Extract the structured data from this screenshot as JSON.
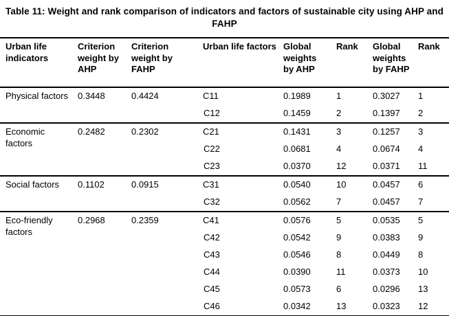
{
  "title": "Table 11: Weight and rank comparison of indicators and factors of sustainable city using AHP and FAHP",
  "columns": [
    "Urban life indicators",
    "Criterion weight by AHP",
    "Criterion weight by FAHP",
    "Urban life factors",
    "Global weights by AHP",
    "Rank",
    "Global weights by FAHP",
    "Rank"
  ],
  "groups": [
    {
      "indicator": "Physical factors",
      "ahp_weight": "0.3448",
      "fahp_weight": "0.4424",
      "factors": [
        {
          "code": "C11",
          "gw_ahp": "0.1989",
          "rank_ahp": "1",
          "gw_fahp": "0.3027",
          "rank_fahp": "1"
        },
        {
          "code": "C12",
          "gw_ahp": "0.1459",
          "rank_ahp": "2",
          "gw_fahp": "0.1397",
          "rank_fahp": "2"
        }
      ]
    },
    {
      "indicator": "Economic factors",
      "ahp_weight": "0.2482",
      "fahp_weight": "0.2302",
      "factors": [
        {
          "code": "C21",
          "gw_ahp": "0.1431",
          "rank_ahp": "3",
          "gw_fahp": "0.1257",
          "rank_fahp": "3"
        },
        {
          "code": "C22",
          "gw_ahp": "0.0681",
          "rank_ahp": "4",
          "gw_fahp": "0.0674",
          "rank_fahp": "4"
        },
        {
          "code": "C23",
          "gw_ahp": "0.0370",
          "rank_ahp": "12",
          "gw_fahp": "0.0371",
          "rank_fahp": "11"
        }
      ]
    },
    {
      "indicator": "Social factors",
      "ahp_weight": "0.1102",
      "fahp_weight": "0.0915",
      "factors": [
        {
          "code": "C31",
          "gw_ahp": "0.0540",
          "rank_ahp": "10",
          "gw_fahp": "0.0457",
          "rank_fahp": "6"
        },
        {
          "code": "C32",
          "gw_ahp": "0.0562",
          "rank_ahp": "7",
          "gw_fahp": "0.0457",
          "rank_fahp": "7"
        }
      ]
    },
    {
      "indicator": "Eco-friendly factors",
      "ahp_weight": "0.2968",
      "fahp_weight": "0.2359",
      "factors": [
        {
          "code": "C41",
          "gw_ahp": "0.0576",
          "rank_ahp": "5",
          "gw_fahp": "0.0535",
          "rank_fahp": "5"
        },
        {
          "code": "C42",
          "gw_ahp": "0.0542",
          "rank_ahp": "9",
          "gw_fahp": "0.0383",
          "rank_fahp": "9"
        },
        {
          "code": "C43",
          "gw_ahp": "0.0546",
          "rank_ahp": "8",
          "gw_fahp": "0.0449",
          "rank_fahp": "8"
        },
        {
          "code": "C44",
          "gw_ahp": "0.0390",
          "rank_ahp": "11",
          "gw_fahp": "0.0373",
          "rank_fahp": "10"
        },
        {
          "code": "C45",
          "gw_ahp": "0.0573",
          "rank_ahp": "6",
          "gw_fahp": "0.0296",
          "rank_fahp": "13"
        },
        {
          "code": "C46",
          "gw_ahp": "0.0342",
          "rank_ahp": "13",
          "gw_fahp": "0.0323",
          "rank_fahp": "12"
        }
      ]
    }
  ]
}
